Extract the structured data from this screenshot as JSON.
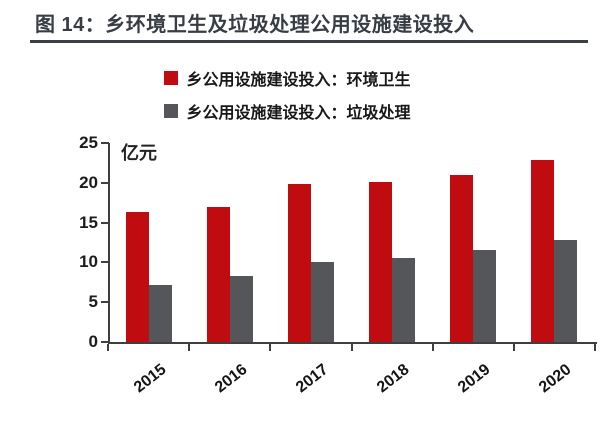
{
  "header": {
    "title": "图 14：乡环境卫生及垃圾处理公用设施建设投入"
  },
  "legend": [
    {
      "label": "乡公用设施建设投入：环境卫生",
      "color": "#c00b10"
    },
    {
      "label": "乡公用设施建设投入：垃圾处理",
      "color": "#55565a"
    }
  ],
  "chart_data": {
    "type": "bar",
    "title": "图 14：乡环境卫生及垃圾处理公用设施建设投入",
    "unit_label": "亿元",
    "categories": [
      "2015",
      "2016",
      "2017",
      "2018",
      "2019",
      "2020"
    ],
    "series": [
      {
        "name": "乡公用设施建设投入：环境卫生",
        "color": "#c00b10",
        "values": [
          16.3,
          16.9,
          19.8,
          20.1,
          21.0,
          22.9
        ]
      },
      {
        "name": "乡公用设施建设投入：垃圾处理",
        "color": "#55565a",
        "values": [
          7.2,
          8.3,
          10.0,
          10.5,
          11.5,
          12.8
        ]
      }
    ],
    "xlabel": "",
    "ylabel": "亿元",
    "ylim": [
      0,
      25
    ],
    "yticks": [
      0,
      5,
      10,
      15,
      20,
      25
    ],
    "grid": false,
    "legend_position": "top",
    "x_tick_rotation": -38
  }
}
